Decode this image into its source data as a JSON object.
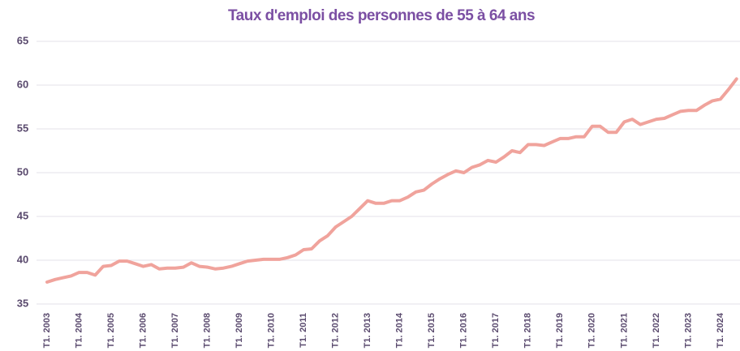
{
  "chart_data": {
    "type": "line",
    "title": "Taux d'emploi des personnes de 55 à 64 ans",
    "categories": [
      "T1. 2003",
      null,
      null,
      null,
      "T1. 2004",
      null,
      null,
      null,
      "T1. 2005",
      null,
      null,
      null,
      "T1. 2006",
      null,
      null,
      null,
      "T1. 2007",
      null,
      null,
      null,
      "T1. 2008",
      null,
      null,
      null,
      "T1. 2009",
      null,
      null,
      null,
      "T1. 2010",
      null,
      null,
      null,
      "T1. 2011",
      null,
      null,
      null,
      "T1. 2012",
      null,
      null,
      null,
      "T1. 2013",
      null,
      null,
      null,
      "T1. 2014",
      null,
      null,
      null,
      "T1. 2015",
      null,
      null,
      null,
      "T1. 2016",
      null,
      null,
      null,
      "T1. 2017",
      null,
      null,
      null,
      "T1. 2018",
      null,
      null,
      null,
      "T1. 2019",
      null,
      null,
      null,
      "T1. 2020",
      null,
      null,
      null,
      "T1. 2021",
      null,
      null,
      null,
      "T1. 2022",
      null,
      null,
      null,
      "T1. 2023",
      null,
      null,
      null,
      "T1. 2024",
      null,
      null
    ],
    "values": [
      37.5,
      37.8,
      38.0,
      38.2,
      38.6,
      38.6,
      38.3,
      39.3,
      39.4,
      39.9,
      39.9,
      39.6,
      39.3,
      39.5,
      39.0,
      39.1,
      39.1,
      39.2,
      39.7,
      39.3,
      39.2,
      39.0,
      39.1,
      39.3,
      39.6,
      39.9,
      40.0,
      40.1,
      40.1,
      40.1,
      40.3,
      40.6,
      41.2,
      41.3,
      42.2,
      42.8,
      43.8,
      44.4,
      45.0,
      45.9,
      46.8,
      46.5,
      46.5,
      46.8,
      46.8,
      47.2,
      47.8,
      48.0,
      48.7,
      49.3,
      49.8,
      50.2,
      50.0,
      50.6,
      50.9,
      51.4,
      51.2,
      51.8,
      52.5,
      52.3,
      53.2,
      53.2,
      53.1,
      53.5,
      53.9,
      53.9,
      54.1,
      54.1,
      55.3,
      55.3,
      54.6,
      54.6,
      55.8,
      56.1,
      55.5,
      55.8,
      56.1,
      56.2,
      56.6,
      57.0,
      57.1,
      57.1,
      57.7,
      58.2,
      58.4,
      59.5,
      60.7
    ],
    "color": "#f0a39c",
    "ylim": [
      35,
      65
    ],
    "yticks": [
      35,
      40,
      45,
      50,
      55,
      60,
      65
    ],
    "grid": true
  }
}
